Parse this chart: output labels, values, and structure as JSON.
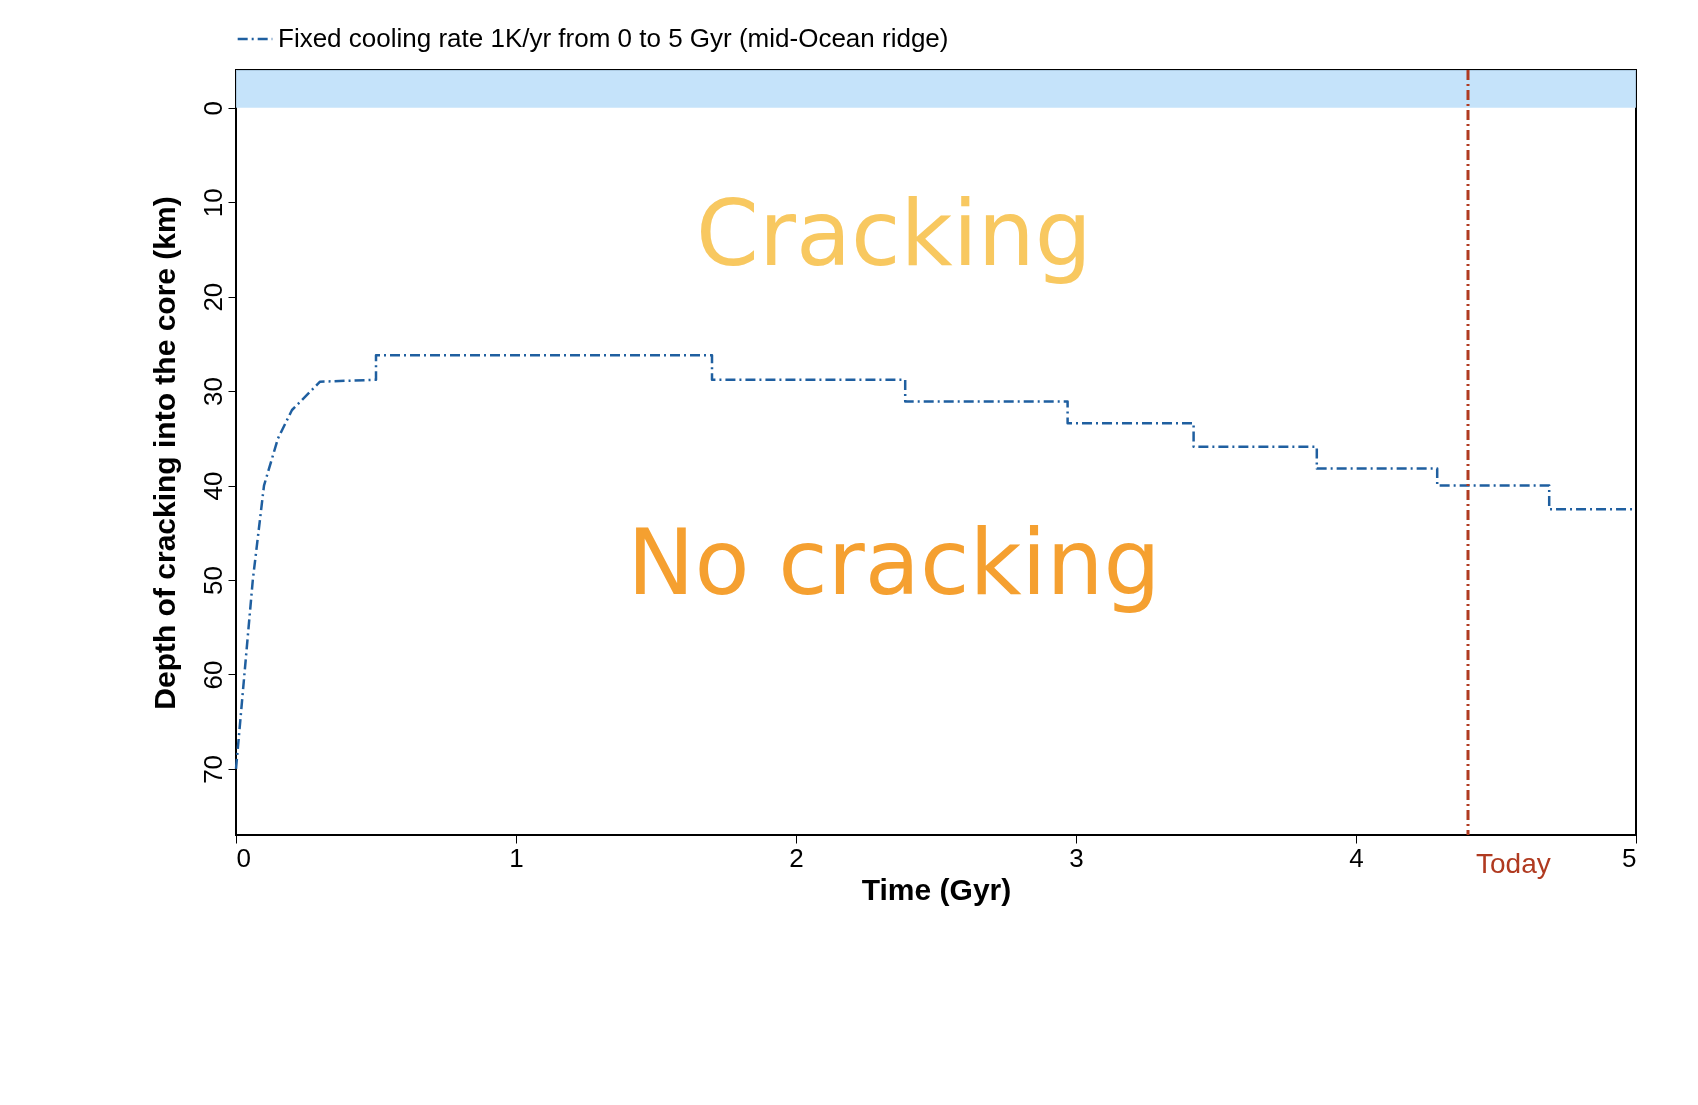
{
  "chart_data": {
    "type": "line",
    "xlabel": "Time (Gyr)",
    "ylabel": "Depth of cracking into the core (km)",
    "xlim": [
      0,
      5
    ],
    "xticks": [
      0,
      1,
      2,
      3,
      4,
      5
    ],
    "ylim": [
      77,
      -4
    ],
    "yticks": [
      0,
      10,
      20,
      30,
      40,
      50,
      60,
      70
    ],
    "series": [
      {
        "name": "Fixed cooling rate 1K/yr from 0 to 5 Gyr (mid-Ocean ridge)",
        "color": "#1f5fa0",
        "line_style": "dashed",
        "x": [
          0,
          0.03,
          0.06,
          0.1,
          0.15,
          0.2,
          0.3,
          0.5,
          0.5,
          1.7,
          1.7,
          2.39,
          2.39,
          2.97,
          2.97,
          3.42,
          3.42,
          3.86,
          3.86,
          4.29,
          4.29,
          4.69,
          4.69,
          5
        ],
        "values": [
          70,
          60,
          50,
          40,
          35,
          32,
          29,
          28.8,
          26.2,
          26.2,
          28.8,
          28.8,
          31.1,
          31.1,
          33.4,
          33.4,
          35.9,
          35.9,
          38.2,
          38.2,
          40,
          40,
          42.5,
          42.5
        ]
      }
    ],
    "ref_lines": [
      {
        "axis": "x",
        "value": 4.4,
        "label": "Today",
        "color": "#b03a20",
        "line_style": "dashed"
      }
    ],
    "bands": [
      {
        "axis": "y",
        "from": -4,
        "to": 0,
        "color": "#bfe0fa"
      }
    ],
    "annotations": [
      "Cracking",
      "No cracking"
    ],
    "legend": "top",
    "grid": false
  }
}
